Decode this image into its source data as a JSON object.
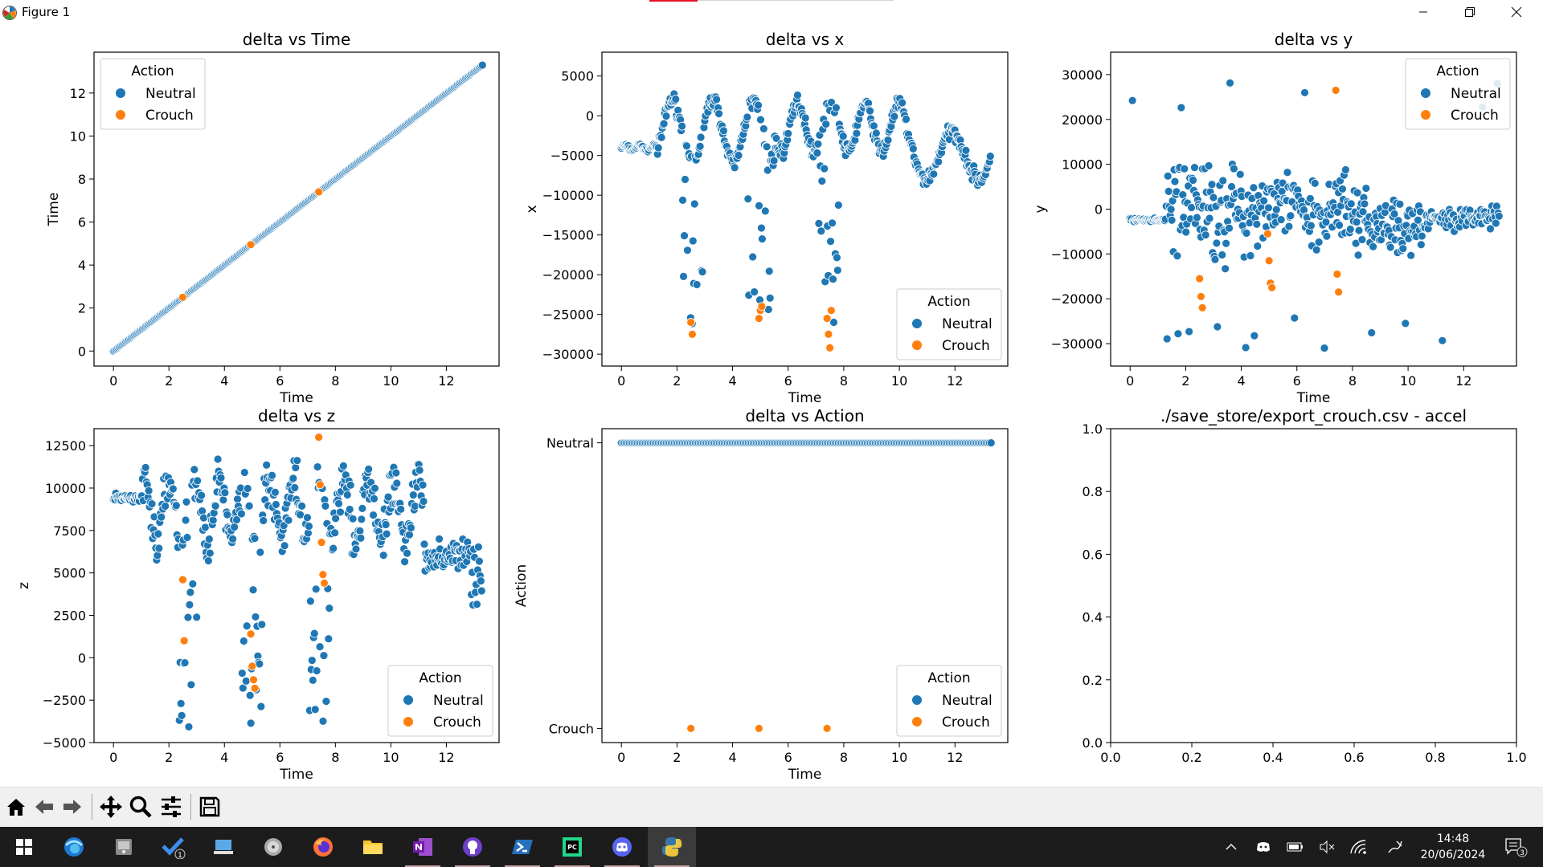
{
  "window": {
    "title": "Figure 1",
    "controls": [
      "minimize-icon",
      "restore-icon",
      "close-icon"
    ]
  },
  "colors": {
    "neutral": "#1f77b4",
    "crouch": "#ff7f0e",
    "taskbar": "#1c1c1c",
    "toolbar": "#f0f0f0"
  },
  "chart_data": [
    {
      "type": "scatter",
      "title": "delta vs Time",
      "xlabel": "Time",
      "ylabel": "Time",
      "xlim": [
        -0.7,
        13.9
      ],
      "ylim": [
        -0.7,
        13.9
      ],
      "xticks": [
        0,
        2,
        4,
        6,
        8,
        10,
        12
      ],
      "yticks": [
        0,
        2,
        4,
        6,
        8,
        10,
        12
      ],
      "legend": {
        "title": "Action",
        "placement": "upper-left",
        "entries": [
          "Neutral",
          "Crouch"
        ]
      },
      "series": [
        {
          "name": "Neutral",
          "pattern": "y equals x",
          "x_range": [
            0,
            13.3
          ]
        },
        {
          "name": "Crouch",
          "points": [
            [
              2.5,
              2.5
            ],
            [
              4.95,
              4.95
            ],
            [
              7.4,
              7.4
            ]
          ]
        }
      ]
    },
    {
      "type": "scatter",
      "title": "delta vs x",
      "xlabel": "Time",
      "ylabel": "x",
      "xlim": [
        -0.7,
        13.9
      ],
      "ylim": [
        -31500,
        8000
      ],
      "xticks": [
        0,
        2,
        4,
        6,
        8,
        10,
        12
      ],
      "yticks": [
        5000,
        0,
        -5000,
        -10000,
        -15000,
        -20000,
        -25000,
        -30000
      ],
      "ytick_labels": [
        "5000",
        "0",
        "−5000",
        "−10000",
        "−15000",
        "−20000",
        "−25000",
        "−30000"
      ],
      "legend": {
        "title": "Action",
        "placement": "lower-right",
        "entries": [
          "Neutral",
          "Crouch"
        ]
      },
      "series": [
        {
          "name": "Neutral",
          "pattern": "dense trace around -4000 to 6000 with spikes down to -29000 near t=2.5, 5.0, 7.5"
        },
        {
          "name": "Crouch",
          "points": [
            [
              2.5,
              -26000
            ],
            [
              2.55,
              -27500
            ],
            [
              4.95,
              -25500
            ],
            [
              5.0,
              -24500
            ],
            [
              5.05,
              -24000
            ],
            [
              7.4,
              -25500
            ],
            [
              7.45,
              -27500
            ],
            [
              7.5,
              -29200
            ],
            [
              7.55,
              -24500
            ]
          ]
        }
      ]
    },
    {
      "type": "scatter",
      "title": "delta vs y",
      "xlabel": "Time",
      "ylabel": "y",
      "xlim": [
        -0.7,
        13.9
      ],
      "ylim": [
        -35000,
        35000
      ],
      "xticks": [
        0,
        2,
        4,
        6,
        8,
        10,
        12
      ],
      "yticks": [
        30000,
        20000,
        10000,
        0,
        -10000,
        -20000,
        -30000
      ],
      "ytick_labels": [
        "30000",
        "20000",
        "10000",
        "0",
        "−10000",
        "−20000",
        "−30000"
      ],
      "legend": {
        "title": "Action",
        "placement": "upper-right",
        "entries": [
          "Neutral",
          "Crouch"
        ]
      },
      "series": [
        {
          "name": "Neutral",
          "pattern": "scatter around 0 with spread up to ±32000"
        },
        {
          "name": "Crouch",
          "points": [
            [
              2.5,
              -15500
            ],
            [
              2.55,
              -19500
            ],
            [
              2.6,
              -22000
            ],
            [
              4.95,
              -5500
            ],
            [
              5.0,
              -11500
            ],
            [
              5.05,
              -16500
            ],
            [
              5.1,
              -17500
            ],
            [
              7.4,
              26500
            ],
            [
              7.45,
              -14500
            ],
            [
              7.5,
              -18500
            ]
          ]
        }
      ]
    },
    {
      "type": "scatter",
      "title": "delta vs z",
      "xlabel": "Time",
      "ylabel": "z",
      "xlim": [
        -0.7,
        13.9
      ],
      "ylim": [
        -5000,
        13500
      ],
      "xticks": [
        0,
        2,
        4,
        6,
        8,
        10,
        12
      ],
      "yticks": [
        12500,
        10000,
        7500,
        5000,
        2500,
        0,
        -2500,
        -5000
      ],
      "ytick_labels": [
        "12500",
        "10000",
        "7500",
        "5000",
        "2500",
        "0",
        "−2500",
        "−5000"
      ],
      "legend": {
        "title": "Action",
        "placement": "lower-right",
        "entries": [
          "Neutral",
          "Crouch"
        ]
      },
      "series": [
        {
          "name": "Neutral",
          "pattern": "band 5000-12000 with dips down to -4200 near t=2.7, 4.9, 7.3"
        },
        {
          "name": "Crouch",
          "points": [
            [
              2.5,
              4600
            ],
            [
              2.55,
              1000
            ],
            [
              4.95,
              1400
            ],
            [
              5.0,
              -500
            ],
            [
              5.05,
              -1300
            ],
            [
              5.1,
              -1800
            ],
            [
              7.4,
              13000
            ],
            [
              7.45,
              10200
            ],
            [
              7.5,
              6800
            ],
            [
              7.55,
              4900
            ],
            [
              7.6,
              4400
            ]
          ]
        }
      ]
    },
    {
      "type": "scatter",
      "title": "delta vs Action",
      "xlabel": "Time",
      "ylabel": "Action",
      "xlim": [
        -0.7,
        13.9
      ],
      "xticks": [
        0,
        2,
        4,
        6,
        8,
        10,
        12
      ],
      "ycategories": [
        "Neutral",
        "Crouch"
      ],
      "legend": {
        "title": "Action",
        "placement": "lower-right",
        "entries": [
          "Neutral",
          "Crouch"
        ]
      },
      "series": [
        {
          "name": "Neutral",
          "category": "Neutral",
          "x_range": [
            0,
            13.3
          ]
        },
        {
          "name": "Crouch",
          "category": "Crouch",
          "x": [
            2.5,
            4.95,
            7.4
          ]
        }
      ]
    },
    {
      "type": "scatter",
      "title": "./save_store/export_crouch.csv - accel",
      "xlabel": "",
      "ylabel": "",
      "xlim": [
        0,
        1
      ],
      "ylim": [
        0,
        1
      ],
      "xticks": [
        0,
        0.2,
        0.4,
        0.6,
        0.8,
        1.0
      ],
      "yticks": [
        0,
        0.2,
        0.4,
        0.6,
        0.8,
        1.0
      ],
      "xtick_labels": [
        "0.0",
        "0.2",
        "0.4",
        "0.6",
        "0.8",
        "1.0"
      ],
      "ytick_labels": [
        "0.0",
        "0.2",
        "0.4",
        "0.6",
        "0.8",
        "1.0"
      ],
      "series": []
    }
  ],
  "toolbar": {
    "buttons": [
      "home-icon",
      "back-icon",
      "forward-icon",
      "pan-icon",
      "zoom-icon",
      "configure-subplots-icon",
      "save-icon"
    ]
  },
  "taskbar": {
    "apps": [
      "start-icon",
      "edge-icon",
      "sandbox-icon",
      "todo-icon",
      "remote-desktop-icon",
      "media-player-icon",
      "firefox-icon",
      "file-explorer-icon",
      "onenote-icon",
      "github-desktop-icon",
      "powershell-icon",
      "pycharm-icon",
      "discord-icon",
      "python-icon"
    ],
    "todo_badge": "1",
    "clock": {
      "time": "14:48",
      "date": "20/06/2024"
    },
    "notification_count": "3"
  }
}
